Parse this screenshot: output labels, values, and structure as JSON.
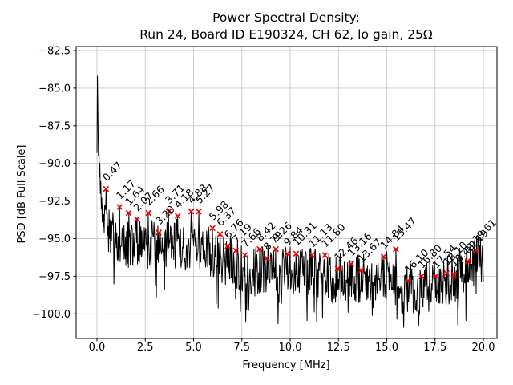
{
  "chart_data": {
    "type": "line",
    "title_line1": "Power Spectral Density:",
    "title_line2": "Run 24, Board ID E190324, CH 62, lo gain, 25Ω",
    "xlabel": "Frequency [MHz]",
    "ylabel": "PSD [dB Full Scale]",
    "xlim": [
      -1.05,
      20.75
    ],
    "ylim": [
      -101.65,
      -82.2
    ],
    "grid": true,
    "legend": "none",
    "line_color": "#000000",
    "marker_style": "x",
    "marker_color": "#ee0000",
    "grid_color": "#c9c9c9",
    "xticks": {
      "values": [
        0,
        2.5,
        5,
        7.5,
        10,
        12.5,
        15,
        17.5,
        20
      ],
      "labels": [
        "0.0",
        "2.5",
        "5.0",
        "7.5",
        "10.0",
        "12.5",
        "15.0",
        "17.5",
        "20.0"
      ]
    },
    "yticks": {
      "values": [
        -82.5,
        -85.0,
        -87.5,
        -90.0,
        -92.5,
        -95.0,
        -97.5,
        -100.0
      ],
      "labels": [
        "−82.5",
        "−85.0",
        "−87.5",
        "−90.0",
        "−92.5",
        "−95.0",
        "−97.5",
        "−100.0"
      ]
    },
    "peaks": [
      {
        "f": 0.47,
        "db": -91.7,
        "label": "0.47"
      },
      {
        "f": 1.17,
        "db": -92.9,
        "label": "1.17"
      },
      {
        "f": 1.64,
        "db": -93.3,
        "label": "1.64"
      },
      {
        "f": 2.07,
        "db": -93.7,
        "label": "2.07"
      },
      {
        "f": 2.66,
        "db": -93.3,
        "label": "2.66"
      },
      {
        "f": 3.2,
        "db": -94.6,
        "label": "3.20"
      },
      {
        "f": 3.71,
        "db": -93.2,
        "label": "3.71"
      },
      {
        "f": 4.18,
        "db": -93.5,
        "label": "4.18"
      },
      {
        "f": 4.88,
        "db": -93.2,
        "label": "4.88"
      },
      {
        "f": 5.27,
        "db": -93.2,
        "label": "5.27"
      },
      {
        "f": 5.98,
        "db": -94.3,
        "label": "5.98"
      },
      {
        "f": 6.37,
        "db": -94.7,
        "label": "6.37"
      },
      {
        "f": 6.76,
        "db": -95.5,
        "label": "6.76"
      },
      {
        "f": 7.19,
        "db": -95.8,
        "label": "7.19"
      },
      {
        "f": 7.66,
        "db": -96.1,
        "label": "7.66"
      },
      {
        "f": 8.42,
        "db": -95.7,
        "label": "8.42"
      },
      {
        "f": 8.79,
        "db": -96.3,
        "label": "8.79"
      },
      {
        "f": 9.26,
        "db": -95.7,
        "label": "9.26"
      },
      {
        "f": 9.84,
        "db": -96.0,
        "label": "9.84"
      },
      {
        "f": 10.31,
        "db": -96.0,
        "label": "10.31"
      },
      {
        "f": 11.13,
        "db": -96.1,
        "label": "11.13"
      },
      {
        "f": 11.8,
        "db": -96.1,
        "label": "11.80"
      },
      {
        "f": 12.46,
        "db": -97.0,
        "label": "12.46"
      },
      {
        "f": 13.16,
        "db": -96.7,
        "label": "13.16"
      },
      {
        "f": 13.67,
        "db": -97.1,
        "label": "13.67"
      },
      {
        "f": 14.84,
        "db": -96.2,
        "label": "14.84"
      },
      {
        "f": 15.47,
        "db": -95.7,
        "label": "15.47"
      },
      {
        "f": 16.1,
        "db": -97.8,
        "label": "16.10"
      },
      {
        "f": 16.8,
        "db": -97.5,
        "label": "16.80"
      },
      {
        "f": 17.54,
        "db": -97.5,
        "label": "17.54"
      },
      {
        "f": 18.1,
        "db": -97.3,
        "label": "18.10"
      },
      {
        "f": 18.48,
        "db": -97.4,
        "label": "18.48"
      },
      {
        "f": 19.19,
        "db": -96.5,
        "label": "19.19"
      },
      {
        "f": 19.61,
        "db": -95.8,
        "label": "19.61"
      }
    ],
    "line_synthesis": {
      "start_points": [
        [
          0,
          -89.3
        ],
        [
          0.025,
          -84.2
        ],
        [
          0.05,
          -86.8
        ],
        [
          0.075,
          -89.5
        ],
        [
          0.1,
          -88.6
        ],
        [
          0.125,
          -90.9
        ],
        [
          0.15,
          -90.0
        ],
        [
          0.175,
          -92.0
        ],
        [
          0.2,
          -91.2
        ],
        [
          0.225,
          -93.0
        ],
        [
          0.25,
          -92.3
        ],
        [
          0.275,
          -93.9
        ],
        [
          0.3,
          -92.8
        ],
        [
          0.325,
          -94.2
        ],
        [
          0.35,
          -93.4
        ],
        [
          0.375,
          -94.6
        ]
      ],
      "trend": [
        [
          0.4,
          -94.0
        ],
        [
          1,
          -95.0
        ],
        [
          2,
          -95.4
        ],
        [
          3,
          -95.5
        ],
        [
          4,
          -95.4
        ],
        [
          5,
          -95.4
        ],
        [
          6,
          -96.0
        ],
        [
          7,
          -96.6
        ],
        [
          8,
          -97.2
        ],
        [
          9,
          -97.0
        ],
        [
          10,
          -97.2
        ],
        [
          11,
          -97.2
        ],
        [
          12,
          -97.5
        ],
        [
          13,
          -97.6
        ],
        [
          14,
          -97.6
        ],
        [
          15,
          -97.4
        ],
        [
          15.9,
          -98.4
        ],
        [
          16.7,
          -98.4
        ],
        [
          17.5,
          -98.0
        ],
        [
          18.5,
          -97.6
        ],
        [
          19.3,
          -96.6
        ],
        [
          20,
          -96.2
        ]
      ],
      "deep_dips": [
        [
          7.76,
          -99.7
        ],
        [
          9.53,
          -99.2
        ],
        [
          12.2,
          -99.3
        ],
        [
          14.3,
          -99.6
        ],
        [
          15.88,
          -100.9
        ],
        [
          16.66,
          -100.8
        ],
        [
          17.9,
          -99.3
        ]
      ],
      "noise_amp_db": 3.4,
      "step_mhz": 0.025
    }
  }
}
